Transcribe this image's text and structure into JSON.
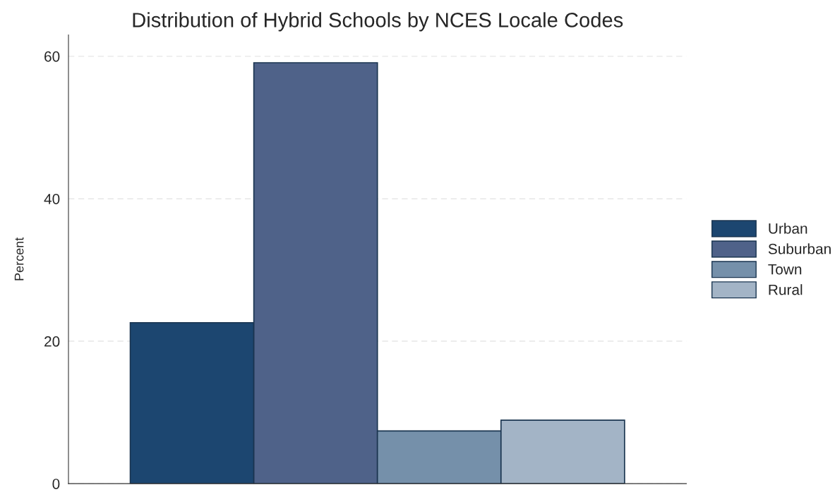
{
  "chart_data": {
    "type": "bar",
    "title": "Distribution of Hybrid Schools by NCES Locale Codes",
    "ylabel": "Percent",
    "categories": [
      null
    ],
    "series": [
      {
        "name": "Urban",
        "color": "#1c4670",
        "values": [
          22.6
        ]
      },
      {
        "name": "Suburban",
        "color": "#4f6289",
        "values": [
          59.1
        ]
      },
      {
        "name": "Town",
        "color": "#7590aa",
        "values": [
          7.4
        ]
      },
      {
        "name": "Rural",
        "color": "#a3b4c6",
        "values": [
          8.9
        ]
      }
    ],
    "ylim": [
      0,
      63
    ],
    "yticks": [
      0,
      20,
      40,
      60
    ],
    "grid": "y",
    "legend": "right"
  }
}
